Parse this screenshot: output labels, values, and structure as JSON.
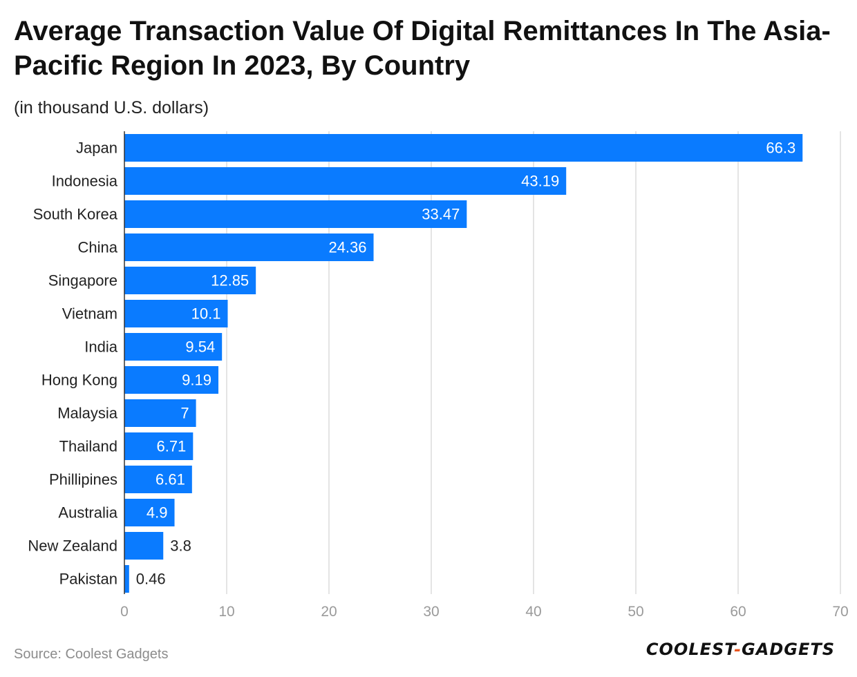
{
  "header": {
    "title": "Average Transaction Value Of Digital Remittances In The Asia-Pacific Region In 2023, By Country",
    "subtitle": "(in thousand U.S. dollars)"
  },
  "footer": {
    "source": "Source: Coolest Gadgets",
    "logo_left": "COOLEST",
    "logo_sep": "-",
    "logo_right": "GADGETS"
  },
  "colors": {
    "bar": "#0a7bff",
    "grid": "#dcdcdc",
    "tick": "#9a9a9a",
    "label_inside": "#ffffff",
    "label_outside": "#222222",
    "category": "#222222"
  },
  "chart_data": {
    "type": "bar",
    "orientation": "horizontal",
    "title": "Average Transaction Value Of Digital Remittances In The Asia-Pacific Region In 2023, By Country",
    "subtitle": "(in thousand U.S. dollars)",
    "xlabel": "",
    "ylabel": "",
    "xlim": [
      0,
      70
    ],
    "xticks": [
      0,
      10,
      20,
      30,
      40,
      50,
      60,
      70
    ],
    "grid": true,
    "categories": [
      "Japan",
      "Indonesia",
      "South Korea",
      "China",
      "Singapore",
      "Vietnam",
      "India",
      "Hong Kong",
      "Malaysia",
      "Thailand",
      "Phillipines",
      "Australia",
      "New Zealand",
      "Pakistan"
    ],
    "values": [
      66.3,
      43.19,
      33.47,
      24.36,
      12.85,
      10.1,
      9.54,
      9.19,
      7,
      6.71,
      6.61,
      4.9,
      3.8,
      0.46
    ],
    "value_labels": [
      "66.3",
      "43.19",
      "33.47",
      "24.36",
      "12.85",
      "10.1",
      "9.54",
      "9.19",
      "7",
      "6.71",
      "6.61",
      "4.9",
      "3.8",
      "0.46"
    ]
  }
}
